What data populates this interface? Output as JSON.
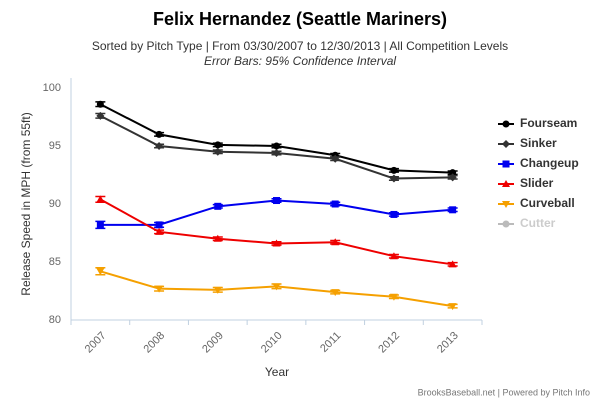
{
  "chart_data": {
    "type": "line",
    "title": "Felix Hernandez (Seattle Mariners)",
    "subtitle": "Sorted by Pitch Type | From 03/30/2007 to 12/30/2013 | All Competition Levels",
    "annotation": "Error Bars: 95% Confidence Interval",
    "x_label": "Year",
    "y_label": "Release Speed in MPH (from 55ft)",
    "credits": "BrooksBaseball.net | Powered by Pitch Info",
    "categories": [
      "2007",
      "2008",
      "2009",
      "2010",
      "2011",
      "2012",
      "2013"
    ],
    "ylim": [
      80,
      100
    ],
    "yticks": [
      80,
      85,
      90,
      95,
      100
    ],
    "grid": false,
    "legend": "right",
    "series": [
      {
        "name": "Fourseam",
        "color": "#000000",
        "marker": "circle",
        "values": [
          98.6,
          96.0,
          95.1,
          95.0,
          94.2,
          92.9,
          92.7
        ],
        "errors": [
          0.2,
          0.15,
          0.15,
          0.15,
          0.15,
          0.15,
          0.15
        ]
      },
      {
        "name": "Sinker",
        "color": "#333333",
        "marker": "diamond",
        "values": [
          97.6,
          95.0,
          94.5,
          94.4,
          93.9,
          92.2,
          92.3
        ],
        "errors": [
          0.2,
          0.15,
          0.15,
          0.15,
          0.15,
          0.15,
          0.15
        ]
      },
      {
        "name": "Changeup",
        "color": "#0000ee",
        "marker": "square",
        "values": [
          88.2,
          88.2,
          89.8,
          90.3,
          90.0,
          89.1,
          89.5
        ],
        "errors": [
          0.3,
          0.2,
          0.15,
          0.15,
          0.15,
          0.15,
          0.15
        ]
      },
      {
        "name": "Slider",
        "color": "#ee0000",
        "marker": "triangle",
        "values": [
          90.4,
          87.6,
          87.0,
          86.6,
          86.7,
          85.5,
          84.8
        ],
        "errors": [
          0.25,
          0.15,
          0.15,
          0.15,
          0.15,
          0.15,
          0.15
        ]
      },
      {
        "name": "Curveball",
        "color": "#f5a000",
        "marker": "triangle-down",
        "values": [
          84.2,
          82.7,
          82.6,
          82.9,
          82.4,
          82.0,
          81.2
        ],
        "errors": [
          0.3,
          0.2,
          0.2,
          0.2,
          0.15,
          0.15,
          0.15
        ]
      },
      {
        "name": "Cutter",
        "color": "#bbbbbb",
        "marker": "circle",
        "values": [
          null,
          null,
          null,
          null,
          null,
          null,
          null
        ],
        "errors": [
          null,
          null,
          null,
          null,
          null,
          null,
          null
        ]
      }
    ]
  }
}
